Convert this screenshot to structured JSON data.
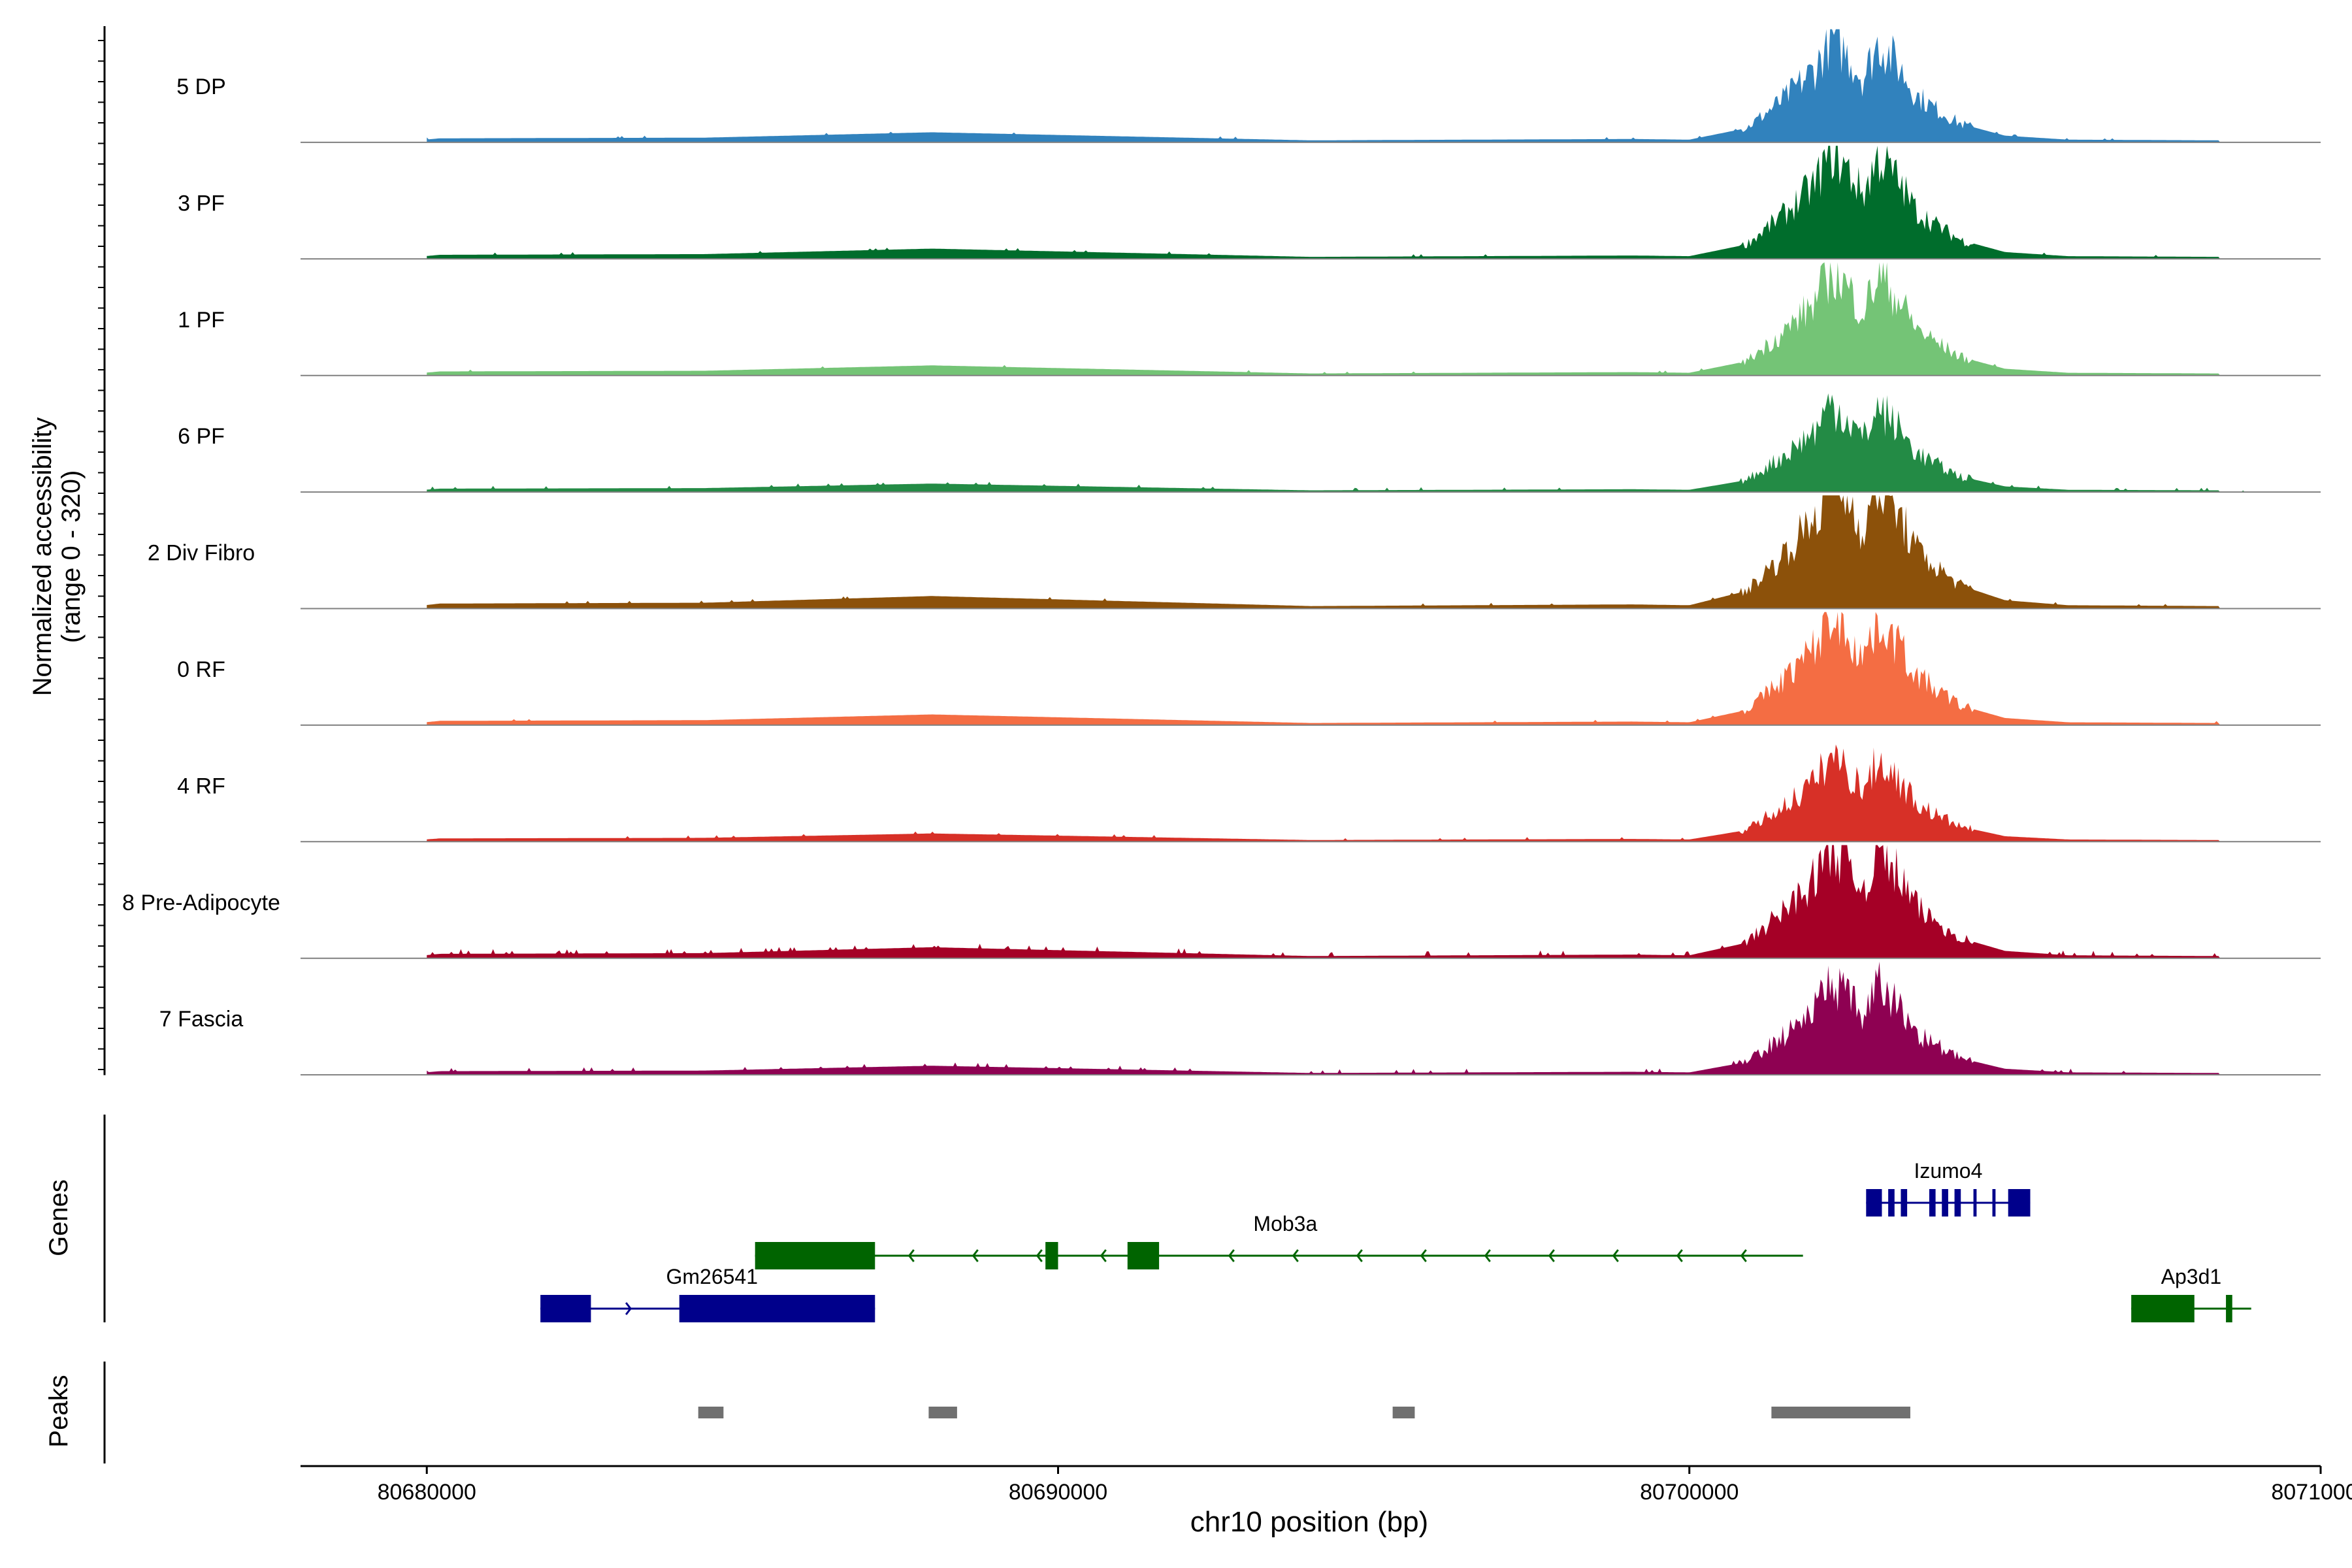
{
  "chart_data": {
    "type": "area",
    "title": "",
    "region": "chr10",
    "xlabel": "chr10 position (bp)",
    "ylabel_line1": "Normalized accessibility",
    "ylabel_line2": "(range 0 - 320)",
    "ylim": [
      0,
      320
    ],
    "xlim": [
      80678000,
      80710000
    ],
    "x_ticks": [
      {
        "value": 80680000,
        "label": "80680000"
      },
      {
        "value": 80690000,
        "label": "80690000"
      },
      {
        "value": 80700000,
        "label": "80700000"
      },
      {
        "value": 80710000,
        "label": "80710000"
      }
    ],
    "peak_profile": [
      [
        80680200,
        12
      ],
      [
        80684400,
        14
      ],
      [
        80688000,
        30
      ],
      [
        80694000,
        6
      ],
      [
        80699100,
        10
      ],
      [
        80700000,
        8
      ],
      [
        80700900,
        42
      ],
      [
        80701500,
        130
      ],
      [
        80702000,
        220
      ],
      [
        80702250,
        320
      ],
      [
        80702500,
        260
      ],
      [
        80702750,
        190
      ],
      [
        80703000,
        300
      ],
      [
        80703300,
        230
      ],
      [
        80703600,
        140
      ],
      [
        80703900,
        100
      ],
      [
        80704300,
        55
      ],
      [
        80705000,
        20
      ],
      [
        80706000,
        8
      ],
      [
        80708400,
        6
      ]
    ],
    "series": [
      {
        "name": "5 DP",
        "color": "#3182bd",
        "scale": 0.98,
        "noise": 0.015
      },
      {
        "name": "3 PF",
        "color": "#006d2c",
        "scale": 1.0,
        "noise": 0.02
      },
      {
        "name": "1 PF",
        "color": "#74c476",
        "scale": 0.98,
        "noise": 0.015
      },
      {
        "name": "6 PF",
        "color": "#238b45",
        "scale": 0.82,
        "noise": 0.03
      },
      {
        "name": "2 Div Fibro",
        "color": "#8c510a",
        "scale": 1.22,
        "noise": 0.02
      },
      {
        "name": "0 RF",
        "color": "#f46d43",
        "scale": 1.04,
        "noise": 0.015
      },
      {
        "name": "4 RF",
        "color": "#d73027",
        "scale": 0.8,
        "noise": 0.02
      },
      {
        "name": "8 Pre-Adipocyte",
        "color": "#a50026",
        "scale": 1.07,
        "noise": 0.07
      },
      {
        "name": "7 Fascia",
        "color": "#8e0152",
        "scale": 0.88,
        "noise": 0.05
      }
    ],
    "genes_label": "Genes",
    "genes": [
      {
        "name": "Izumo4",
        "strand": "+",
        "color": "#00008b",
        "row": 0,
        "start": 80702800,
        "end": 80705400,
        "exons": [
          [
            80702800,
            80703050
          ],
          [
            80703150,
            80703250
          ],
          [
            80703350,
            80703450
          ],
          [
            80703800,
            80703900
          ],
          [
            80704000,
            80704100
          ],
          [
            80704200,
            80704300
          ],
          [
            80704500,
            80704550
          ],
          [
            80704800,
            80704850
          ],
          [
            80705050,
            80705400
          ]
        ]
      },
      {
        "name": "Mob3a",
        "strand": "-",
        "color": "#006400",
        "row": 1,
        "start": 80685200,
        "end": 80701800,
        "exons": [
          [
            80685200,
            80687100
          ],
          [
            80689800,
            80690000
          ],
          [
            80691100,
            80691600
          ]
        ]
      },
      {
        "name": "Gm26541",
        "strand": "+",
        "color": "#00008b",
        "row": 2,
        "start": 80681800,
        "end": 80687100,
        "exons": [
          [
            80681800,
            80682600
          ],
          [
            80684000,
            80687100
          ]
        ]
      },
      {
        "name": "Ap3d1",
        "strand": "-",
        "color": "#006400",
        "row": 2,
        "start": 80707000,
        "end": 80708900,
        "exons": [
          [
            80707000,
            80708000
          ],
          [
            80708500,
            80708600
          ]
        ]
      }
    ],
    "peaks_label": "Peaks",
    "peaks_color": "#707070",
    "peaks": [
      [
        80684300,
        80684700
      ],
      [
        80687950,
        80688400
      ],
      [
        80695300,
        80695650
      ],
      [
        80701300,
        80703500
      ]
    ]
  }
}
